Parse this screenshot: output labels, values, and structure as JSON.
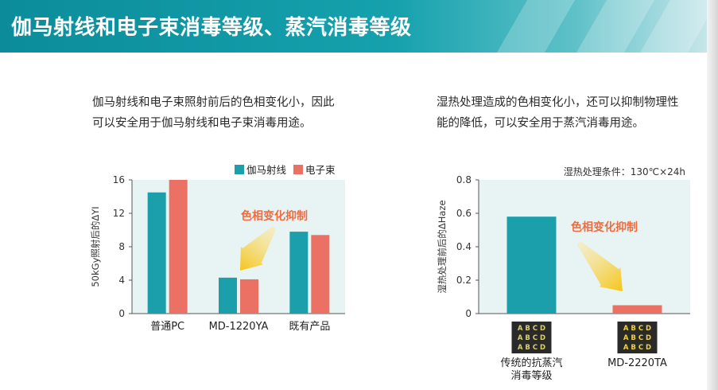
{
  "header": {
    "title": "伽马射线和电子束消毒等级、蒸汽消毒等级"
  },
  "left_panel": {
    "description": [
      "伽马射线和电子束照射前后的色相变化小，因此",
      "可以安全用于伽马射线和电子束消毒用途。"
    ]
  },
  "right_panel": {
    "description": [
      "湿热处理造成的色相变化小，还可以抑制物理性",
      "能的降低，可以安全用于蒸汽消毒用途。"
    ]
  },
  "colors": {
    "gamma": "#1a9fab",
    "ebeam": "#ea7163",
    "plot_bg": "#e8f4f3",
    "annotation": "#f06b3f",
    "arrow": "#f5c518"
  },
  "chart_data": [
    {
      "type": "bar",
      "categories": [
        "普通PC",
        "MD-1220YA",
        "既有产品"
      ],
      "series": [
        {
          "name": "伽马射线",
          "values": [
            14.5,
            4.3,
            9.8
          ]
        },
        {
          "name": "电子束",
          "values": [
            16.0,
            4.1,
            9.4
          ]
        }
      ],
      "ylabel": "50kGy照射后的ΔYI",
      "ylim": [
        0,
        16
      ],
      "yticks": [
        0,
        4,
        8,
        12,
        16
      ],
      "annotation": "色相变化抑制",
      "legend": "top-right",
      "grid": false
    },
    {
      "type": "bar",
      "categories": [
        "传统的抗蒸汽消毒等级",
        "MD-2220TA"
      ],
      "category_lines": [
        [
          "传统的抗蒸汽",
          "消毒等级"
        ],
        [
          "MD-2220TA"
        ]
      ],
      "values": [
        0.58,
        0.05
      ],
      "ylabel": "湿热处理前后的ΔHaze",
      "ylim": [
        0,
        0.8
      ],
      "yticks": [
        "0",
        "0.2",
        "0.4",
        "0.6",
        "0.8"
      ],
      "condition": "湿热处理条件：130℃×24h",
      "annotation": "色相变化抑制",
      "sample_text": "A B C D",
      "grid": false
    }
  ]
}
